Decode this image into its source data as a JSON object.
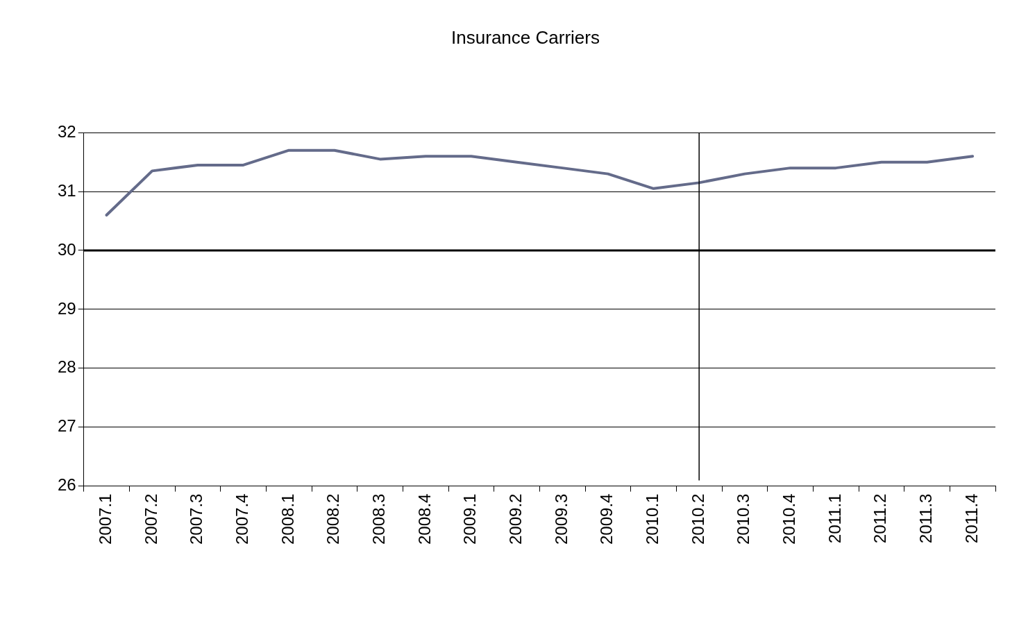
{
  "chart_data": {
    "type": "line",
    "title": "Insurance Carriers",
    "categories": [
      "2007.1",
      "2007.2",
      "2007.3",
      "2007.4",
      "2008.1",
      "2008.2",
      "2008.3",
      "2008.4",
      "2009.1",
      "2009.2",
      "2009.3",
      "2009.4",
      "2010.1",
      "2010.2",
      "2010.3",
      "2010.4",
      "2011.1",
      "2011.2",
      "2011.3",
      "2011.4"
    ],
    "series": [
      {
        "color": "#646b8a",
        "values": [
          30.6,
          31.35,
          31.45,
          31.45,
          31.7,
          31.7,
          31.55,
          31.6,
          31.6,
          31.5,
          31.4,
          31.3,
          31.05,
          31.15,
          31.3,
          31.4,
          31.4,
          31.5,
          31.5,
          31.6
        ]
      }
    ],
    "ylim": [
      26,
      32
    ],
    "yticks": [
      26,
      27,
      28,
      29,
      30,
      31,
      32
    ],
    "grid": "y",
    "legend": false,
    "marker": "none",
    "line_style": "solid",
    "ref_lines": [
      {
        "axis": "y",
        "value": 30,
        "color": "#000000"
      },
      {
        "axis": "x",
        "value": "2010.2",
        "color": "#000000"
      }
    ]
  }
}
